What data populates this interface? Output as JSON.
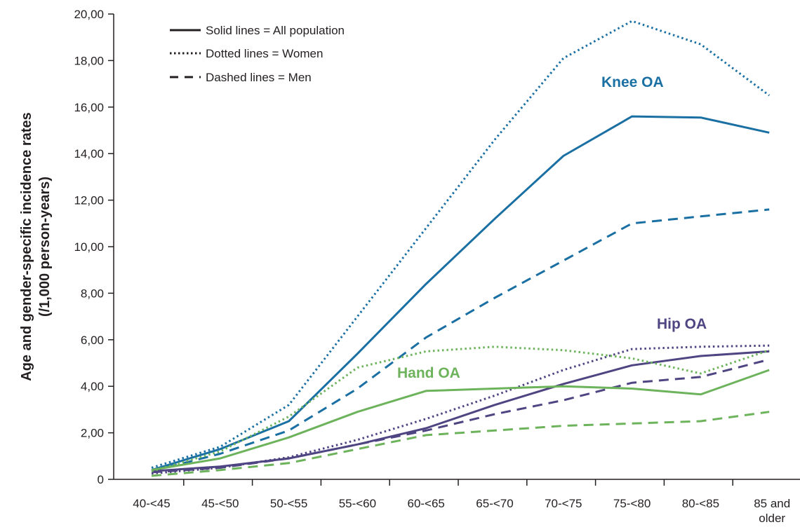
{
  "chart_data": {
    "type": "line",
    "title": "",
    "xlabel": "",
    "ylabel_line1": "Age and gender-specific incidence rates",
    "ylabel_line2": "(/1,000 person-years)",
    "ylim": [
      0,
      20
    ],
    "yticks": [
      {
        "value": 0,
        "label": "0"
      },
      {
        "value": 2,
        "label": "2,00"
      },
      {
        "value": 4,
        "label": "4,00"
      },
      {
        "value": 6,
        "label": "6,00"
      },
      {
        "value": 8,
        "label": "8,00"
      },
      {
        "value": 10,
        "label": "10,00"
      },
      {
        "value": 12,
        "label": "12,00"
      },
      {
        "value": 14,
        "label": "14,00"
      },
      {
        "value": 16,
        "label": "16,00"
      },
      {
        "value": 18,
        "label": "18,00"
      },
      {
        "value": 20,
        "label": "20,00"
      }
    ],
    "categories": [
      [
        "40-<45"
      ],
      [
        "45-<50"
      ],
      [
        "50-<55"
      ],
      [
        "55-<60"
      ],
      [
        "60-<65"
      ],
      [
        "65-<70"
      ],
      [
        "70-<75"
      ],
      [
        "75-<80"
      ],
      [
        "80-<85"
      ],
      [
        "85 and",
        "older"
      ]
    ],
    "grid": false,
    "legend": {
      "placement": "top-left",
      "entries": [
        {
          "style": "solid",
          "label": "Solid lines = All population"
        },
        {
          "style": "dotted",
          "label": "Dotted lines = Women"
        },
        {
          "style": "dashed",
          "label": "Dashed lines = Men"
        }
      ]
    },
    "groups": [
      {
        "label": "Knee OA",
        "color": "#1a6fa3"
      },
      {
        "label": "Hip OA",
        "color": "#4e4582"
      },
      {
        "label": "Hand OA",
        "color": "#6db35c"
      }
    ],
    "series": [
      {
        "group": "Knee OA",
        "style": "solid",
        "color": "#1a6fa3",
        "values": [
          0.4,
          1.3,
          2.5,
          5.4,
          8.4,
          11.2,
          13.9,
          15.6,
          15.55,
          14.9
        ]
      },
      {
        "group": "Knee OA",
        "style": "dotted",
        "color": "#1a6fa3",
        "values": [
          0.5,
          1.4,
          3.2,
          7.0,
          10.8,
          14.6,
          18.1,
          19.7,
          18.7,
          16.5
        ]
      },
      {
        "group": "Knee OA",
        "style": "dashed",
        "color": "#1a6fa3",
        "values": [
          0.35,
          1.1,
          2.1,
          3.9,
          6.1,
          7.8,
          9.4,
          11.0,
          11.3,
          11.6
        ]
      },
      {
        "group": "Hip OA",
        "style": "solid",
        "color": "#4e4582",
        "values": [
          0.35,
          0.55,
          0.9,
          1.5,
          2.2,
          3.2,
          4.1,
          4.9,
          5.3,
          5.5
        ]
      },
      {
        "group": "Hip OA",
        "style": "dotted",
        "color": "#4e4582",
        "values": [
          0.25,
          0.5,
          0.95,
          1.7,
          2.6,
          3.6,
          4.7,
          5.6,
          5.7,
          5.75
        ]
      },
      {
        "group": "Hip OA",
        "style": "dashed",
        "color": "#4e4582",
        "values": [
          0.3,
          0.5,
          0.9,
          1.5,
          2.1,
          2.8,
          3.4,
          4.15,
          4.4,
          5.15
        ]
      },
      {
        "group": "Hand OA",
        "style": "solid",
        "color": "#6db35c",
        "values": [
          0.4,
          0.9,
          1.8,
          2.9,
          3.8,
          3.9,
          4.0,
          3.9,
          3.65,
          4.7
        ]
      },
      {
        "group": "Hand OA",
        "style": "dotted",
        "color": "#6db35c",
        "values": [
          0.35,
          1.2,
          2.7,
          4.8,
          5.5,
          5.7,
          5.55,
          5.2,
          4.55,
          5.55
        ]
      },
      {
        "group": "Hand OA",
        "style": "dashed",
        "color": "#6db35c",
        "values": [
          0.15,
          0.4,
          0.7,
          1.3,
          1.9,
          2.1,
          2.3,
          2.4,
          2.5,
          2.9
        ]
      }
    ]
  }
}
